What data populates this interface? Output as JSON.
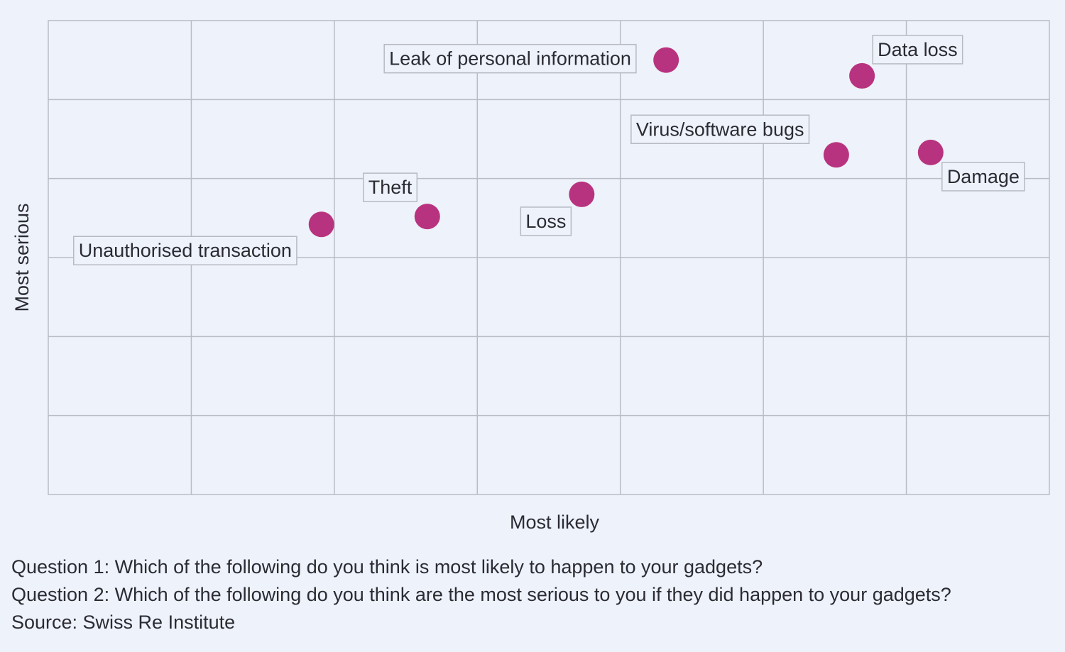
{
  "chart_data": {
    "type": "scatter",
    "xlabel": "Most likely",
    "ylabel": "Most serious",
    "xlim": [
      0,
      7
    ],
    "ylim": [
      0,
      6
    ],
    "grid": true,
    "point_color": "#b8337f",
    "points": [
      {
        "label": "Leak of personal information",
        "x": 4.32,
        "y": 5.5
      },
      {
        "label": "Data loss",
        "x": 5.69,
        "y": 5.3
      },
      {
        "label": "Virus/software bugs",
        "x": 5.51,
        "y": 4.3
      },
      {
        "label": "Damage",
        "x": 6.17,
        "y": 4.33
      },
      {
        "label": "Loss",
        "x": 3.73,
        "y": 3.8
      },
      {
        "label": "Theft",
        "x": 2.65,
        "y": 3.52
      },
      {
        "label": "Unauthorised transaction",
        "x": 1.91,
        "y": 3.42
      }
    ]
  },
  "notes": {
    "question1": "Question 1: Which of the following do you think is most likely to happen to your gadgets?",
    "question2": "Question 2: Which of the following do you think are the most serious to you if they did happen to your gadgets?",
    "source": "Source: Swiss Re Institute"
  }
}
